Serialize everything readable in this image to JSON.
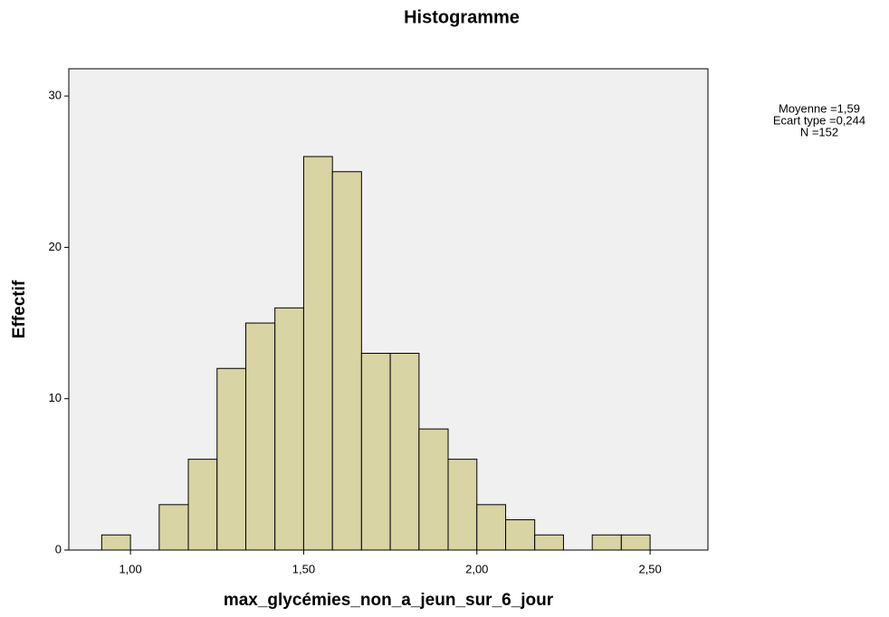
{
  "chart_data": {
    "type": "histogram",
    "title": "Histogramme",
    "xlabel": "max_glycémies_non_a_jeun_sur_6_jour",
    "ylabel": "Effectif",
    "annotations": [
      "Moyenne =1,59",
      "Ecart type =0,244",
      "N =152"
    ],
    "bins": [
      0.917,
      1.0,
      1.083,
      1.167,
      1.25,
      1.333,
      1.417,
      1.5,
      1.583,
      1.667,
      1.75,
      1.833,
      1.917,
      2.0,
      2.083,
      2.167,
      2.25,
      2.333,
      2.417,
      2.5
    ],
    "values": [
      1,
      0,
      3,
      6,
      12,
      15,
      16,
      26,
      25,
      13,
      13,
      8,
      6,
      3,
      2,
      1,
      0,
      1,
      1
    ],
    "color": "#d8d4a4",
    "background": "#f0f0f0",
    "xlim": [
      0.822,
      2.667
    ],
    "ylim": [
      0,
      31.8
    ],
    "xticks": [
      {
        "value": 1,
        "label": "1,00"
      },
      {
        "value": 1.5,
        "label": "1,50"
      },
      {
        "value": 2,
        "label": "2,00"
      },
      {
        "value": 2.5,
        "label": "2,50"
      }
    ],
    "yticks": [
      0,
      10,
      20,
      30
    ]
  }
}
